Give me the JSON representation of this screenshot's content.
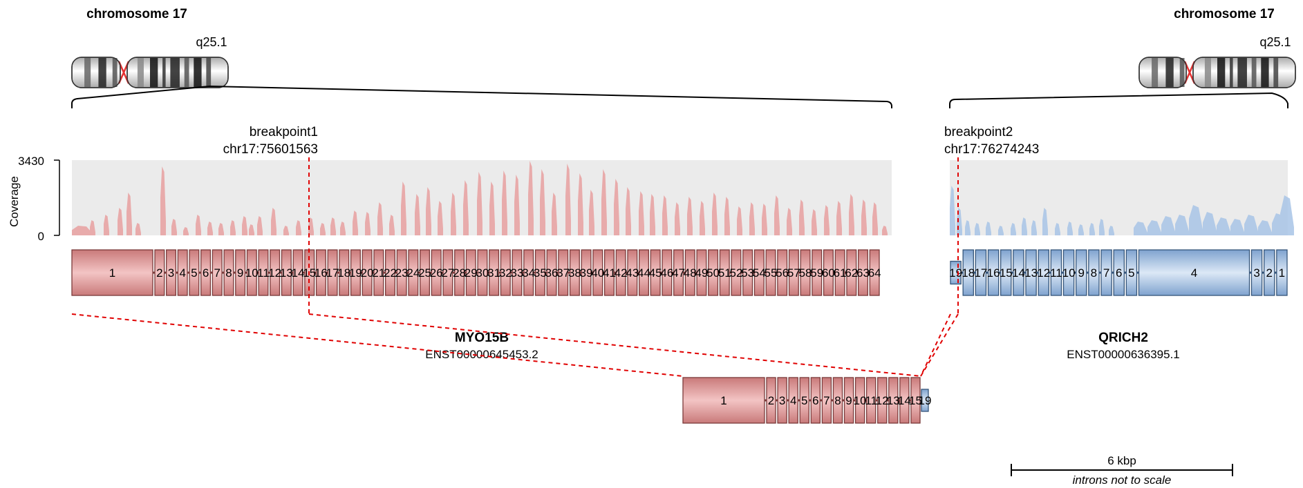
{
  "left_chromosome": {
    "title": "chromosome 17",
    "band": "q25.1"
  },
  "right_chromosome": {
    "title": "chromosome 17",
    "band": "q25.1"
  },
  "breakpoint1": {
    "label": "breakpoint1",
    "coord": "chr17:75601563"
  },
  "breakpoint2": {
    "label": "breakpoint2",
    "coord": "chr17:76274243"
  },
  "coverage_axis": {
    "label": "Coverage",
    "max": "3430",
    "min": "0"
  },
  "gene1": {
    "name": "MYO15B",
    "transcript": "ENST00000645453.2",
    "color": "#e8a0a0",
    "exons": [
      "1",
      "2",
      "3",
      "4",
      "5",
      "6",
      "7",
      "8",
      "9",
      "10",
      "11",
      "12",
      "13",
      "14",
      "15",
      "16",
      "17",
      "18",
      "19",
      "20",
      "21",
      "22",
      "23",
      "24",
      "25",
      "26",
      "27",
      "28",
      "29",
      "30",
      "31",
      "32",
      "33",
      "34",
      "35",
      "36",
      "37",
      "38",
      "39",
      "40",
      "41",
      "42",
      "43",
      "44",
      "45",
      "46",
      "47",
      "48",
      "49",
      "50",
      "51",
      "52",
      "53",
      "54",
      "55",
      "56",
      "57",
      "58",
      "59",
      "60",
      "61",
      "62",
      "63",
      "64"
    ]
  },
  "gene2": {
    "name": "QRICH2",
    "transcript": "ENST00000636395.1",
    "color": "#a8c4e6",
    "exons": [
      "19",
      "18",
      "17",
      "16",
      "15",
      "14",
      "13",
      "12",
      "11",
      "10",
      "9",
      "8",
      "7",
      "6",
      "5",
      "4",
      "3",
      "2",
      "1"
    ]
  },
  "fusion": {
    "gene1_exons": [
      "1",
      "2",
      "3",
      "4",
      "5",
      "6",
      "7",
      "8",
      "9",
      "10",
      "11",
      "12",
      "13",
      "14",
      "15"
    ],
    "gene2_exons": [
      "19"
    ]
  },
  "scale": {
    "label": "6 kbp",
    "note": "introns not to scale"
  }
}
